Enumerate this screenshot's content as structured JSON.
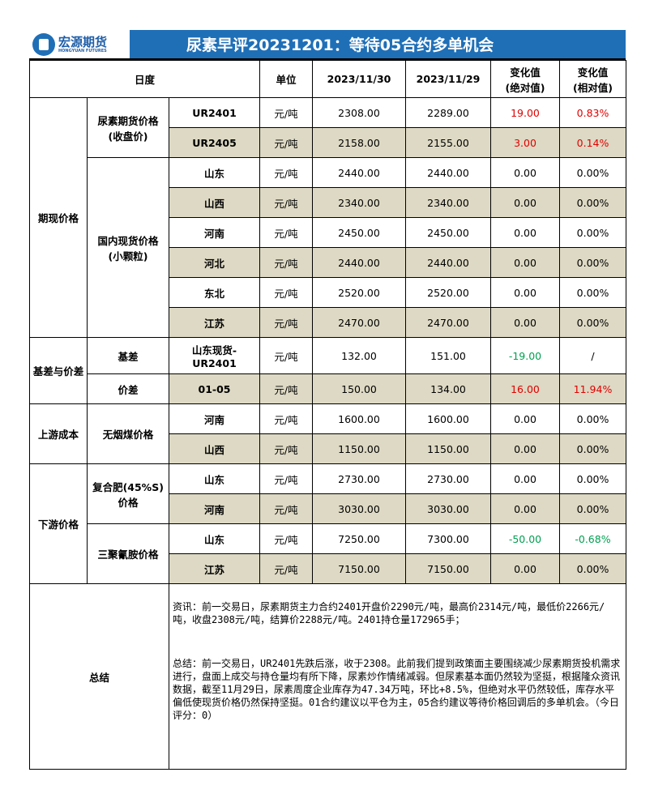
{
  "header": {
    "logo_cn": "宏源期货",
    "logo_en": "HONGYUAN FUTURES",
    "title": "尿素早评20231201：等待05合约多单机会"
  },
  "columns": {
    "period": "日度",
    "unit": "单位",
    "date1": "2023/11/30",
    "date2": "2023/11/29",
    "abs": "变化值",
    "abs_sub": "(绝对值)",
    "rel": "变化值",
    "rel_sub": "(相对值)"
  },
  "groups": {
    "spot_futures": "期现价格",
    "futures_close": "尿素期货价格",
    "futures_close_sub": "(收盘价)",
    "domestic_spot": "国内现货价格",
    "domestic_spot_sub": "(小颗粒)",
    "basis_spread": "基差与价差",
    "basis": "基差",
    "spread": "价差",
    "upstream": "上游成本",
    "anthracite": "无烟煤价格",
    "downstream": "下游价格",
    "compound": "复合肥(45%S)",
    "compound_sub": "价格",
    "melamine": "三聚氰胺价格",
    "summary": "总结"
  },
  "rows": [
    {
      "item": "UR2401",
      "unit": "元/吨",
      "v1": "2308.00",
      "v2": "2289.00",
      "abs": "19.00",
      "rel": "0.83%"
    },
    {
      "item": "UR2405",
      "unit": "元/吨",
      "v1": "2158.00",
      "v2": "2155.00",
      "abs": "3.00",
      "rel": "0.14%"
    },
    {
      "item": "山东",
      "unit": "元/吨",
      "v1": "2440.00",
      "v2": "2440.00",
      "abs": "0.00",
      "rel": "0.00%"
    },
    {
      "item": "山西",
      "unit": "元/吨",
      "v1": "2340.00",
      "v2": "2340.00",
      "abs": "0.00",
      "rel": "0.00%"
    },
    {
      "item": "河南",
      "unit": "元/吨",
      "v1": "2450.00",
      "v2": "2450.00",
      "abs": "0.00",
      "rel": "0.00%"
    },
    {
      "item": "河北",
      "unit": "元/吨",
      "v1": "2440.00",
      "v2": "2440.00",
      "abs": "0.00",
      "rel": "0.00%"
    },
    {
      "item": "东北",
      "unit": "元/吨",
      "v1": "2520.00",
      "v2": "2520.00",
      "abs": "0.00",
      "rel": "0.00%"
    },
    {
      "item": "江苏",
      "unit": "元/吨",
      "v1": "2470.00",
      "v2": "2470.00",
      "abs": "0.00",
      "rel": "0.00%"
    },
    {
      "item": "山东现货-",
      "item2": "UR2401",
      "unit": "元/吨",
      "v1": "132.00",
      "v2": "151.00",
      "abs": "-19.00",
      "rel": "/"
    },
    {
      "item": "01-05",
      "unit": "元/吨",
      "v1": "150.00",
      "v2": "134.00",
      "abs": "16.00",
      "rel": "11.94%"
    },
    {
      "item": "河南",
      "unit": "元/吨",
      "v1": "1600.00",
      "v2": "1600.00",
      "abs": "0.00",
      "rel": "0.00%"
    },
    {
      "item": "山西",
      "unit": "元/吨",
      "v1": "1150.00",
      "v2": "1150.00",
      "abs": "0.00",
      "rel": "0.00%"
    },
    {
      "item": "山东",
      "unit": "元/吨",
      "v1": "2730.00",
      "v2": "2730.00",
      "abs": "0.00",
      "rel": "0.00%"
    },
    {
      "item": "河南",
      "unit": "元/吨",
      "v1": "3030.00",
      "v2": "3030.00",
      "abs": "0.00",
      "rel": "0.00%"
    },
    {
      "item": "山东",
      "unit": "元/吨",
      "v1": "7250.00",
      "v2": "7300.00",
      "abs": "-50.00",
      "rel": "-0.68%"
    },
    {
      "item": "江苏",
      "unit": "元/吨",
      "v1": "7150.00",
      "v2": "7150.00",
      "abs": "0.00",
      "rel": "0.00%"
    }
  ],
  "summary": {
    "news": "资讯：前一交易日，尿素期货主力合约2401开盘价2290元/吨，最高价2314元/吨，最低价2266元/吨，收盘2308元/吨，结算价2288元/吨。2401持仓量172965手；",
    "conclusion": "总结：前一交易日，UR2401先跌后涨，收于2308。此前我们提到政策面主要围绕减少尿素期货投机需求进行，盘面上成交与持仓量均有所下降，尿素炒作情绪减弱。但尿素基本面仍然较为坚挺，根据隆众资讯数据，截至11月29日，尿素周度企业库存为47.34万吨，环比+8.5%，但绝对水平仍然较低，库存水平偏低使现货价格仍然保持坚挺。01合约建议以平仓为主，05合约建议等待价格回调后的多单机会。（今日评分：0）"
  },
  "colors": {
    "brand": "#1f6fb7",
    "shade": "#ddd9c4",
    "up": "#e00000",
    "down": "#00a050"
  }
}
